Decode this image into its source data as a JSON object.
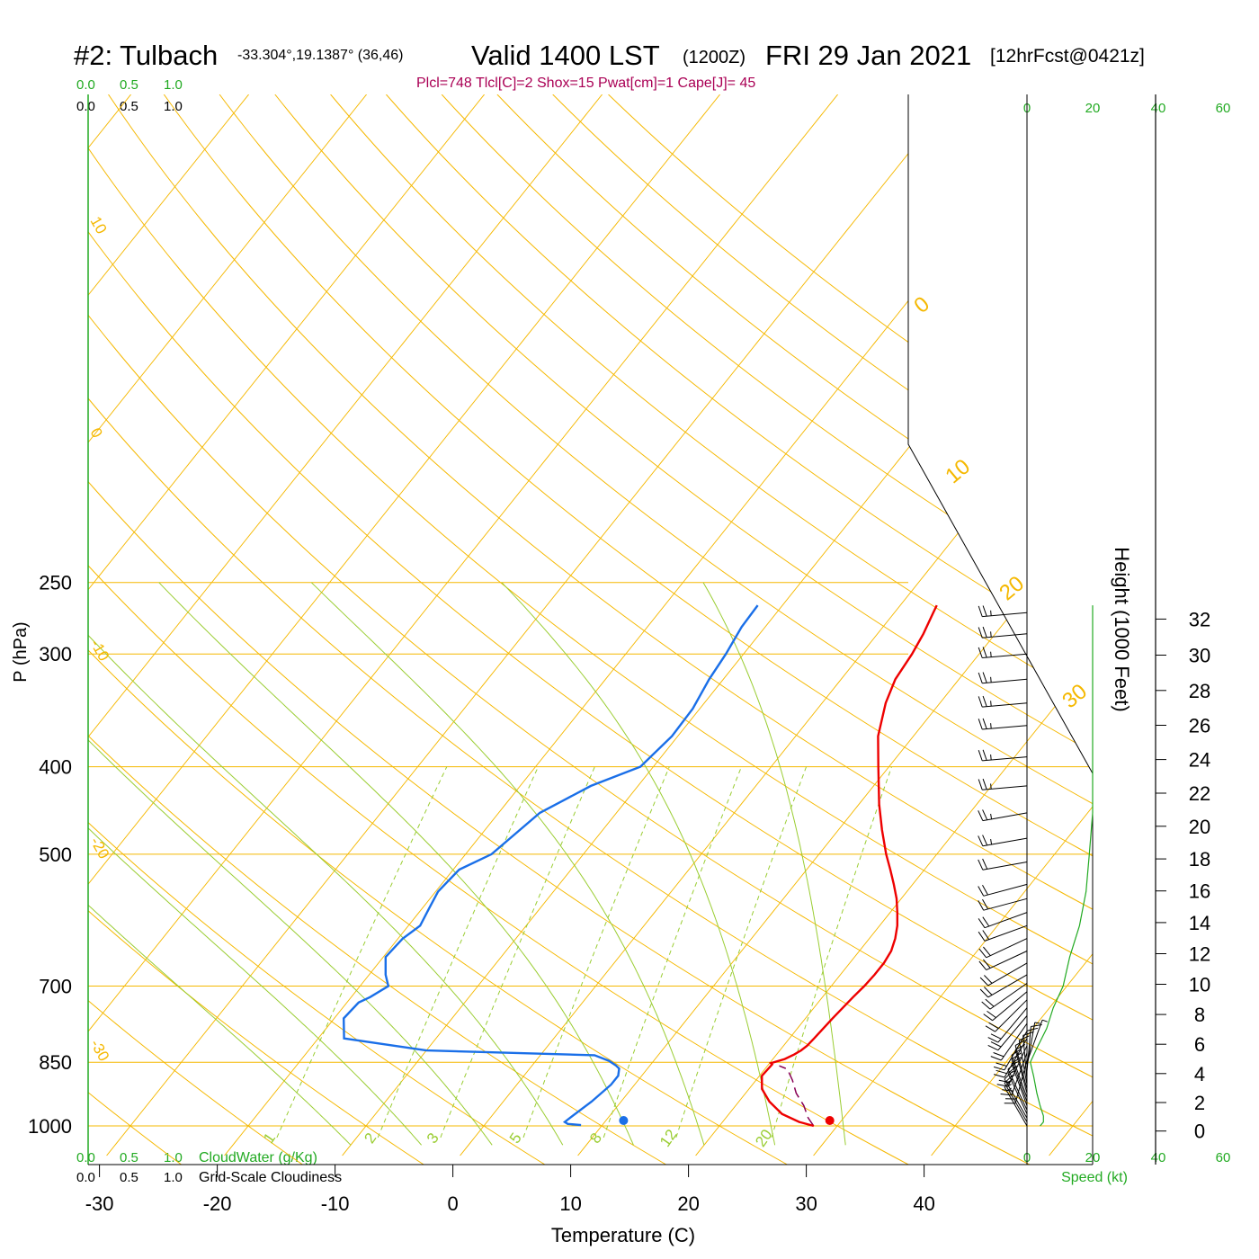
{
  "header": {
    "station": "#2: Tulbach",
    "coords": "-33.304°,19.1387° (36,46)",
    "valid": "Valid 1400 LST",
    "zulu": "(1200Z)",
    "date": "FRI 29 Jan 2021",
    "forecast": "[12hrFcst@0421z]",
    "indices": "Plcl=748 Tlcl[C]=2 Shox=15 Pwat[cm]=1 Cape[J]= 45"
  },
  "colors": {
    "isotherm": "#f5b800",
    "dry_adiabat": "#f5b800",
    "moist_adiabat": "#9acd32",
    "mixing_ratio": "#9acd32",
    "temperature": "#ee0000",
    "dewpoint": "#1a6fe8",
    "parcel": "#880055",
    "cloud_scale": "#22aa22",
    "speed_profile": "#22aa22",
    "index_text": "#aa0055",
    "axis_text": "#000000"
  },
  "scales": {
    "cloud_water_top": [
      "0.0",
      "0.5",
      "1.0"
    ],
    "cloudiness_top": [
      "0.0",
      "0.5",
      "1.0"
    ],
    "cloud_water_bottom": [
      "0.0",
      "0.5",
      "1.0"
    ],
    "cloudiness_bottom": [
      "0.0",
      "0.5",
      "1.0"
    ],
    "cloud_water_label": "CloudWater (g/Kg)",
    "cloudiness_label": "Grid-Scale Cloudiness",
    "speed_ticks": [
      "0",
      "20",
      "40",
      "60"
    ],
    "speed_label": "Speed (kt)"
  },
  "chart_data": {
    "type": "skew-t",
    "xlabel": "Temperature (C)",
    "ylabel": "P (hPa)",
    "y2label": "Height (1000 Feet)",
    "x_ticks": [
      -30,
      -20,
      -10,
      0,
      10,
      20,
      30,
      40
    ],
    "xlim": [
      -34,
      46
    ],
    "p_ticks": [
      250,
      300,
      400,
      500,
      700,
      850,
      1000
    ],
    "plim": [
      250,
      1025
    ],
    "height_ticks": [
      0,
      2,
      4,
      6,
      8,
      10,
      12,
      14,
      16,
      18,
      20,
      22,
      24,
      26,
      28,
      30,
      32
    ],
    "isotherm_labels": [
      -30,
      -20,
      -10,
      0,
      10,
      20,
      30
    ],
    "mixing_ratio_labels": [
      1,
      2,
      3,
      5,
      8,
      12,
      20
    ],
    "dry_adiabat_labels": [
      10,
      0,
      -10,
      -20,
      -30,
      0,
      10,
      20,
      30
    ],
    "temperature": {
      "name": "Temperature",
      "p": [
        1000,
        990,
        970,
        940,
        910,
        880,
        855,
        852,
        843,
        833,
        825,
        815,
        800,
        760,
        720,
        700,
        680,
        660,
        640,
        620,
        600,
        580,
        560,
        540,
        520,
        500,
        470,
        440,
        400,
        370,
        340,
        320,
        300,
        285,
        270,
        265
      ],
      "t": [
        28,
        26.5,
        24.5,
        22.6,
        21.1,
        20.2,
        20.3,
        20.1,
        21.0,
        21.5,
        21.8,
        22.0,
        22.1,
        22.3,
        22.6,
        22.8,
        22.9,
        22.9,
        22.7,
        22.2,
        21.5,
        20.6,
        19.6,
        18.4,
        17.1,
        15.7,
        13.7,
        11.7,
        9.1,
        7.0,
        5.4,
        4.6,
        4.3,
        3.9,
        3.3,
        3.1
      ]
    },
    "dewpoint": {
      "name": "Dewpoint",
      "p": [
        998,
        995,
        990,
        978,
        940,
        900,
        880,
        864,
        857,
        847,
        835,
        825,
        800,
        760,
        730,
        720,
        700,
        680,
        650,
        620,
        600,
        575,
        550,
        520,
        500,
        450,
        420,
        400,
        370,
        345,
        320,
        300,
        280,
        265
      ],
      "t": [
        8.2,
        7.0,
        6.6,
        6.8,
        7.5,
        8.0,
        8.0,
        7.6,
        7.1,
        6.2,
        4.6,
        -10,
        -17.8,
        -19.2,
        -19.0,
        -18.4,
        -17.6,
        -18.6,
        -19.8,
        -19.6,
        -19.0,
        -19.4,
        -19.8,
        -19.5,
        -17.8,
        -16.5,
        -14.0,
        -11.1,
        -10.5,
        -10.6,
        -11.2,
        -11.5,
        -12.0,
        -12.1
      ]
    },
    "parcel": {
      "name": "Parcel",
      "p": [
        1000,
        980,
        950,
        920,
        890,
        865,
        858
      ],
      "t": [
        28,
        27,
        25.8,
        24.3,
        23.1,
        21.9,
        21.0
      ]
    },
    "surface_temperature": 29.0,
    "surface_dewpoint": 11.5,
    "wind_speed": {
      "name": "Speed",
      "p": [
        1000,
        990,
        975,
        950,
        920,
        880,
        850,
        820,
        780,
        740,
        700,
        650,
        600,
        550,
        500,
        450,
        400,
        350,
        300,
        265
      ],
      "kt": [
        4,
        5,
        5,
        4,
        3,
        2,
        1,
        3,
        6,
        8,
        11,
        13,
        16,
        18,
        19,
        20,
        20,
        20,
        20,
        20
      ]
    },
    "wind_barbs": {
      "p": [
        1000,
        990,
        980,
        970,
        960,
        950,
        940,
        930,
        920,
        910,
        900,
        890,
        880,
        870,
        860,
        850,
        845,
        830,
        815,
        800,
        785,
        770,
        755,
        740,
        725,
        710,
        695,
        680,
        660,
        640,
        620,
        600,
        580,
        560,
        540,
        510,
        480,
        450,
        420,
        390,
        360,
        340,
        320,
        300,
        285,
        270
      ],
      "speed_kt": [
        15,
        15,
        15,
        15,
        15,
        15,
        15,
        10,
        10,
        10,
        10,
        10,
        10,
        10,
        5,
        5,
        20,
        20,
        20,
        20,
        20,
        20,
        20,
        20,
        20,
        20,
        20,
        20,
        20,
        20,
        20,
        20,
        20,
        20,
        20,
        20,
        25,
        25,
        25,
        25,
        25,
        25,
        25,
        25,
        25,
        25
      ],
      "dir_deg": [
        330,
        330,
        330,
        335,
        335,
        340,
        340,
        340,
        345,
        345,
        350,
        355,
        0,
        5,
        10,
        20,
        195,
        200,
        205,
        210,
        210,
        215,
        220,
        220,
        225,
        230,
        235,
        240,
        240,
        245,
        245,
        250,
        250,
        255,
        255,
        260,
        260,
        260,
        265,
        265,
        265,
        265,
        265,
        265,
        265,
        265
      ]
    }
  }
}
